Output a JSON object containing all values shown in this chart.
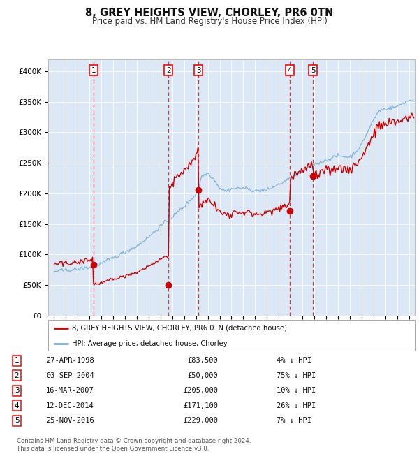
{
  "title": "8, GREY HEIGHTS VIEW, CHORLEY, PR6 0TN",
  "subtitle": "Price paid vs. HM Land Registry's House Price Index (HPI)",
  "background_color": "#dce8f5",
  "sale_prices": [
    83500,
    50000,
    205000,
    171100,
    229000
  ],
  "sale_labels": [
    "1",
    "2",
    "3",
    "4",
    "5"
  ],
  "sale_decimal_years": [
    1998.32,
    2004.67,
    2007.21,
    2014.92,
    2016.9
  ],
  "sale_date_labels": [
    "27-APR-1998",
    "03-SEP-2004",
    "16-MAR-2007",
    "12-DEC-2014",
    "25-NOV-2016"
  ],
  "sale_price_labels": [
    "£83,500",
    "£50,000",
    "£205,000",
    "£171,100",
    "£229,000"
  ],
  "sale_hpi_labels": [
    "4% ↓ HPI",
    "75% ↓ HPI",
    "10% ↓ HPI",
    "26% ↓ HPI",
    "7% ↓ HPI"
  ],
  "hpi_color": "#7bafd4",
  "price_color": "#cc0000",
  "legend_label_price": "8, GREY HEIGHTS VIEW, CHORLEY, PR6 0TN (detached house)",
  "legend_label_hpi": "HPI: Average price, detached house, Chorley",
  "ylim": [
    0,
    420000
  ],
  "yticks": [
    0,
    50000,
    100000,
    150000,
    200000,
    250000,
    300000,
    350000,
    400000
  ],
  "ytick_labels": [
    "£0",
    "£50K",
    "£100K",
    "£150K",
    "£200K",
    "£250K",
    "£300K",
    "£350K",
    "£400K"
  ],
  "xlim_start": 1994.5,
  "xlim_end": 2025.5,
  "hpi_knots_t": [
    1995.0,
    1996.0,
    1997.0,
    1998.0,
    1999.0,
    2000.0,
    2001.0,
    2002.0,
    2003.0,
    2004.0,
    2005.0,
    2006.0,
    2007.0,
    2007.5,
    2008.0,
    2008.5,
    2009.0,
    2009.5,
    2010.0,
    2011.0,
    2012.0,
    2013.0,
    2014.0,
    2015.0,
    2016.0,
    2017.0,
    2018.0,
    2019.0,
    2020.0,
    2020.5,
    2021.0,
    2021.5,
    2022.0,
    2022.5,
    2023.0,
    2023.5,
    2024.0,
    2024.5,
    2025.0
  ],
  "hpi_knots_v": [
    72000,
    74000,
    76000,
    80000,
    87000,
    96000,
    105000,
    115000,
    130000,
    148000,
    163000,
    180000,
    200000,
    230000,
    235000,
    225000,
    210000,
    205000,
    208000,
    210000,
    205000,
    205000,
    215000,
    225000,
    235000,
    248000,
    255000,
    262000,
    260000,
    268000,
    280000,
    300000,
    320000,
    335000,
    338000,
    340000,
    342000,
    348000,
    352000
  ],
  "footer_text": "Contains HM Land Registry data © Crown copyright and database right 2024.\nThis data is licensed under the Open Government Licence v3.0."
}
